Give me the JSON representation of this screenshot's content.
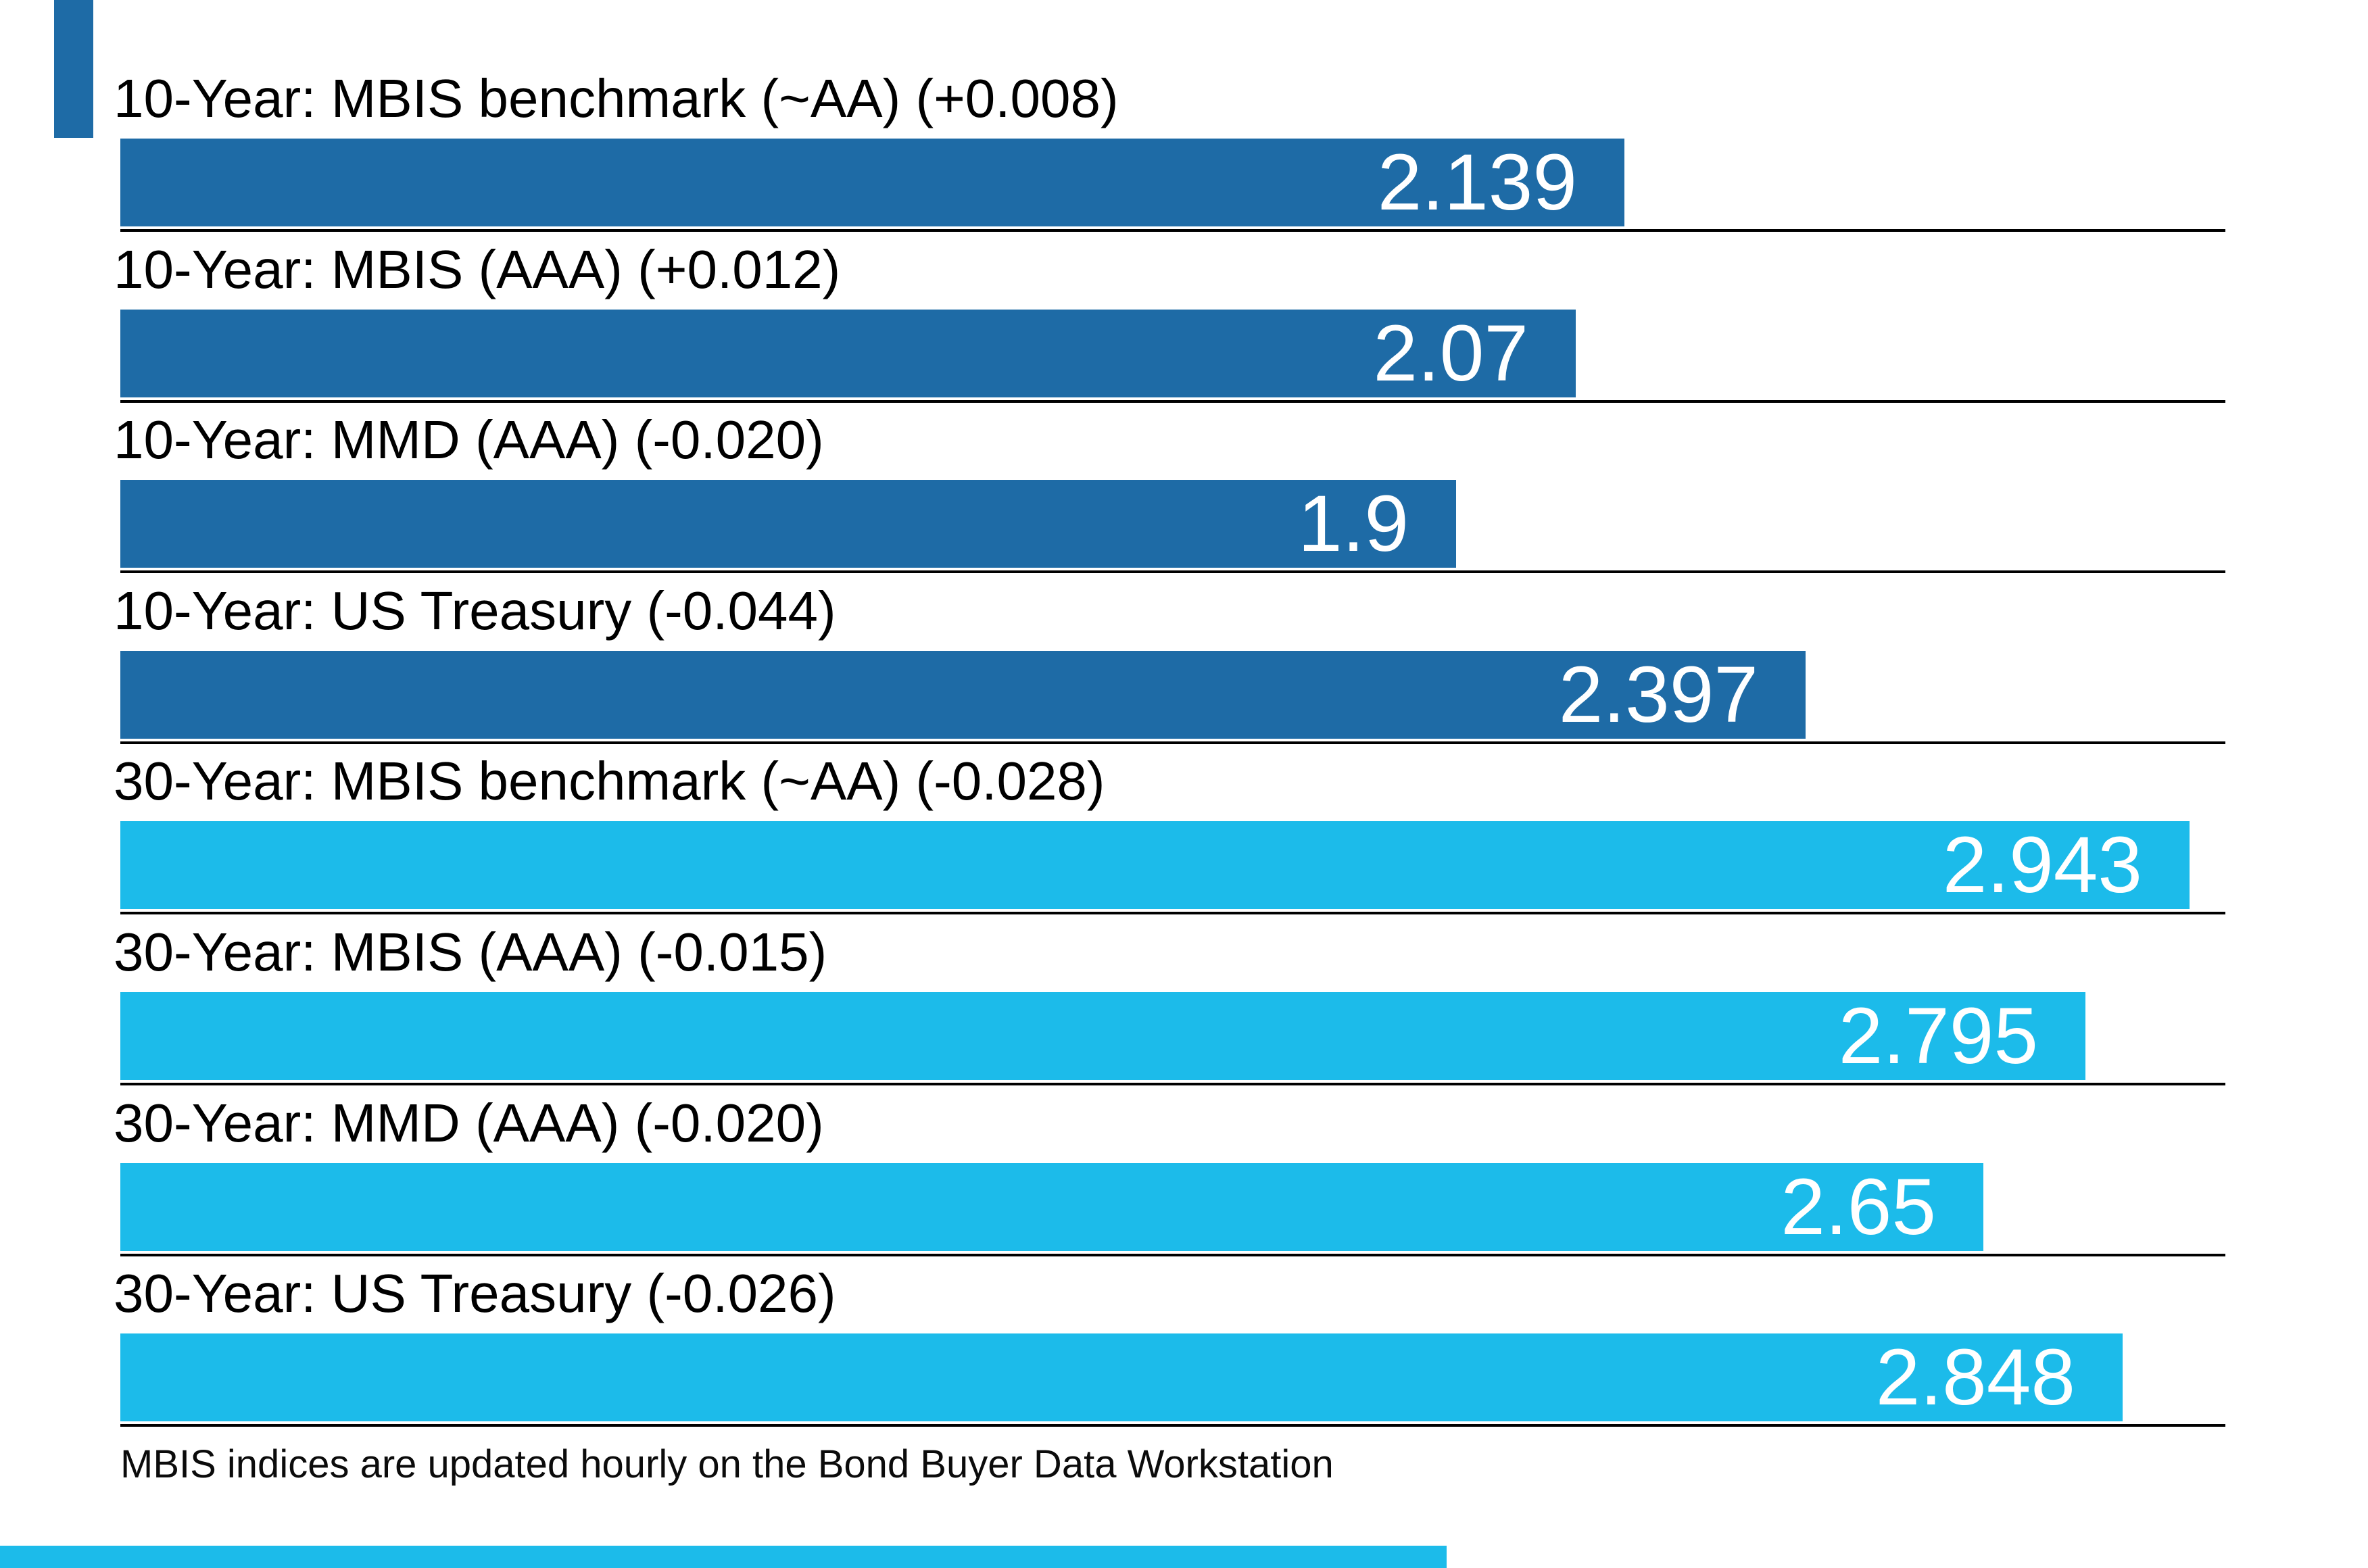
{
  "chart_data": {
    "type": "bar",
    "orientation": "horizontal",
    "title": "",
    "categories": [
      "10-Year: MBIS benchmark (~AA) (+0.008)",
      "10-Year: MBIS (AAA) (+0.012)",
      "10-Year: MMD (AAA) (-0.020)",
      "10-Year: US Treasury (-0.044)",
      "30-Year: MBIS benchmark (~AA) (-0.028)",
      "30-Year: MBIS (AAA) (-0.015)",
      "30-Year: MMD (AAA) (-0.020)",
      "30-Year: US Treasury (-0.026)"
    ],
    "values": [
      2.139,
      2.07,
      1.9,
      2.397,
      2.943,
      2.795,
      2.65,
      2.848
    ],
    "value_labels": [
      "2.139",
      "2.07",
      "1.9",
      "2.397",
      "2.943",
      "2.795",
      "2.65",
      "2.848"
    ],
    "series_groups": [
      "10-year",
      "10-year",
      "10-year",
      "10-year",
      "30-year",
      "30-year",
      "30-year",
      "30-year"
    ],
    "xlim": [
      0,
      2.994
    ],
    "grid": "horizontal separator line under each bar",
    "legend": "none",
    "bar_colors": {
      "10-year": "#1E6BA6",
      "30-year": "#1CBBEA"
    },
    "value_label_color": "#FFFFFF",
    "label_color": "#000000",
    "separator_color": "#000000",
    "footnote": "MBIS indices are updated hourly on the Bond Buyer Data Workstation"
  },
  "footer": {
    "text": "MBIS indices are updated hourly on the Bond Buyer Data Workstation"
  },
  "edge_artifacts": {
    "top_left_stripe_color": "#1E6BA6",
    "bottom_left_stripe_color": "#1CBBEA"
  }
}
